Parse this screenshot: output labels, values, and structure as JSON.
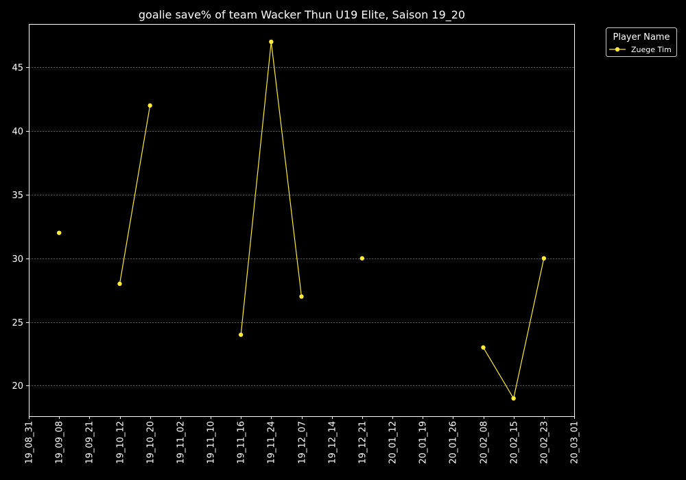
{
  "chart_data": {
    "type": "line",
    "title": "goalie save% of team Wacker Thun U19 Elite, Saison 19_20",
    "xlabel": "",
    "ylabel": "",
    "x_ticks": [
      "19_08_31",
      "19_09_08",
      "19_09_21",
      "19_10_12",
      "19_10_20",
      "19_11_02",
      "19_11_10",
      "19_11_16",
      "19_11_24",
      "19_12_07",
      "19_12_14",
      "19_12_21",
      "20_01_12",
      "20_01_19",
      "20_01_26",
      "20_02_08",
      "20_02_15",
      "20_02_23",
      "20_03_01"
    ],
    "y_ticks": [
      20,
      25,
      30,
      35,
      40,
      45
    ],
    "ylim": [
      17.6,
      48.4
    ],
    "grid": "horizontal dashed",
    "legend": {
      "title": "Player Name",
      "placement": "outside-top-right"
    },
    "series": [
      {
        "name": "Zuege Tim",
        "color": "#ffeb3b",
        "points": [
          {
            "x": "19_09_08",
            "y": 32
          },
          {
            "x": "19_09_21",
            "y": null
          },
          {
            "x": "19_10_12",
            "y": 28
          },
          {
            "x": "19_10_20",
            "y": 42
          },
          {
            "x": "19_11_02",
            "y": null
          },
          {
            "x": "19_11_10",
            "y": null
          },
          {
            "x": "19_11_16",
            "y": 24
          },
          {
            "x": "19_11_24",
            "y": 47
          },
          {
            "x": "19_12_07",
            "y": 27
          },
          {
            "x": "19_12_14",
            "y": null
          },
          {
            "x": "19_12_21",
            "y": 30
          },
          {
            "x": "20_01_12",
            "y": null
          },
          {
            "x": "20_01_19",
            "y": null
          },
          {
            "x": "20_01_26",
            "y": null
          },
          {
            "x": "20_02_08",
            "y": 23
          },
          {
            "x": "20_02_15",
            "y": 19
          },
          {
            "x": "20_02_23",
            "y": 30
          },
          {
            "x": "20_03_01",
            "y": null
          }
        ]
      }
    ],
    "colors": {
      "background": "#000000",
      "axes": "#ffffff",
      "grid": "#777777",
      "text": "#ffffff"
    }
  }
}
